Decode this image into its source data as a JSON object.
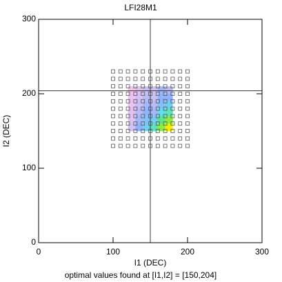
{
  "chart_data": {
    "type": "grid-map",
    "title": "LFI28M1",
    "xlabel": "I1 (DEC)",
    "ylabel": "I2 (DEC)",
    "footnote": "optimal values found at [I1,I2] = [150,204]",
    "xlim": [
      0,
      300
    ],
    "ylim": [
      0,
      300
    ],
    "xticks": [
      0,
      100,
      200,
      300
    ],
    "yticks": [
      0,
      100,
      200,
      300
    ],
    "grid_x": [
      100,
      110,
      120,
      130,
      140,
      150,
      160,
      170,
      180,
      190,
      200
    ],
    "grid_y": [
      130,
      140,
      150,
      160,
      170,
      180,
      190,
      200,
      210,
      220,
      230
    ],
    "marker_color": "#555555",
    "heatmap": {
      "x": [
        125,
        135,
        145,
        155,
        165,
        175
      ],
      "y": [
        205,
        195,
        185,
        175,
        165,
        155
      ],
      "z": [
        [
          0.2,
          0.3,
          0.4,
          0.35,
          0.5,
          0.45
        ],
        [
          0.25,
          0.35,
          0.45,
          0.4,
          0.55,
          0.55
        ],
        [
          0.25,
          0.4,
          0.5,
          0.45,
          0.6,
          0.65
        ],
        [
          0.3,
          0.45,
          0.55,
          0.5,
          0.7,
          0.75
        ],
        [
          0.3,
          0.5,
          0.6,
          0.65,
          0.8,
          0.9
        ],
        [
          0.35,
          0.55,
          0.65,
          0.75,
          0.9,
          1.0
        ]
      ],
      "colormap": [
        {
          "value": 0,
          "color": "#ffffff"
        },
        {
          "value": 0.2,
          "color": "#f6c3ee"
        },
        {
          "value": 0.4,
          "color": "#c9c0f5"
        },
        {
          "value": 0.55,
          "color": "#8fb4ff"
        },
        {
          "value": 0.7,
          "color": "#5fe0e8"
        },
        {
          "value": 0.85,
          "color": "#5ee85e"
        },
        {
          "value": 1,
          "color": "#f0f000"
        }
      ]
    },
    "crosshair": {
      "x": 150,
      "y": 204,
      "color": "#333333"
    }
  }
}
